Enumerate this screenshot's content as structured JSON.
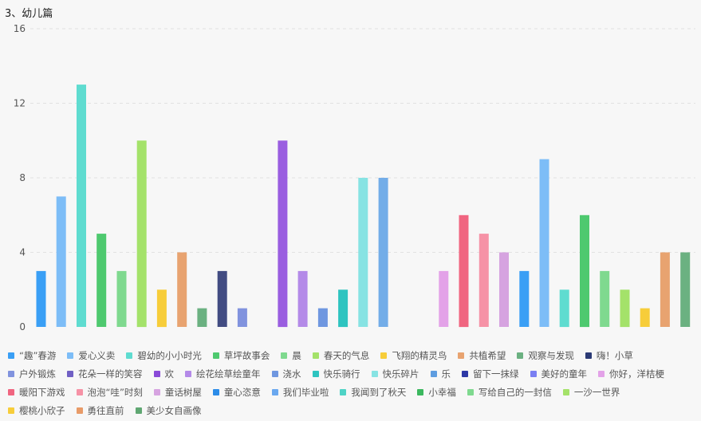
{
  "chart_data": {
    "type": "bar",
    "title": "3、幼儿篇",
    "ylim": [
      0,
      16
    ],
    "yticks": [
      0,
      4,
      8,
      12,
      16
    ],
    "grid": true,
    "legend_position": "bottom",
    "categories": [
      "“趣”春游",
      "爱心义卖",
      "碧幼的小小时光",
      "草坪故事会",
      "晨",
      "春天的气息",
      "飞翔的精灵鸟",
      "共植希望",
      "观察与发现",
      "嗨！小草",
      "户外锻炼",
      "花朵一样的笑容",
      "欢",
      "绘花绘草绘童年",
      "浇水",
      "快乐骑行",
      "快乐碎片",
      "乐",
      "留下一抹绿",
      "美好的童年",
      "你好，洋桔梗",
      "暖阳下游戏",
      "泡泡“哇”时刻",
      "童话树屋",
      "童心恣意",
      "我们毕业啦",
      "我闻到了秋天",
      "小幸福",
      "写给自己的一封信",
      "一沙一世界",
      "樱桃小欣子",
      "勇往直前",
      "美少女自画像"
    ],
    "values": [
      3,
      7,
      13,
      5,
      3,
      10,
      2,
      4,
      1,
      3,
      1,
      0,
      10,
      3,
      1,
      2,
      8,
      8,
      0,
      0,
      3,
      6,
      5,
      4,
      3,
      9,
      2,
      6,
      3,
      2,
      1,
      4,
      4
    ],
    "colors": [
      "#3a9ff5",
      "#7dbdf7",
      "#5fdcd0",
      "#4ec96f",
      "#7fd98f",
      "#a4e26a",
      "#f7cd3a",
      "#e8a370",
      "#6bb181",
      "#2b3a75",
      "#8193de",
      "#7060c4",
      "#8a4ad8",
      "#b48ae8",
      "#6f97e0",
      "#2ec4c0",
      "#87e3e3",
      "#5e9de0",
      "#2d38a6",
      "#7a7ff2",
      "#e3a2e8",
      "#f06580",
      "#f692a6",
      "#d6a3e0",
      "#2c8ce8",
      "#6aa8ef",
      "#4fd3c6",
      "#3cb85f",
      "#7fd98f",
      "#a5e26a",
      "#f7cd3a",
      "#e89b68",
      "#5fa772"
    ],
    "bar_colors": [
      "#3a9ff5",
      "#7dbdf7",
      "#5fdcd0",
      "#4ec96f",
      "#7fd98f",
      "#a4e26a",
      "#f7cd3a",
      "#e8a370",
      "#6bb181",
      "#424c82",
      "#8193de",
      "#7060c4",
      "#9a5ee0",
      "#b48ae8",
      "#6f97e0",
      "#2ec4c0",
      "#87e3e3",
      "#73ade8",
      "#2d38a6",
      "#7a7ff2",
      "#e3a2e8",
      "#f06580",
      "#f692a6",
      "#d6a3e0",
      "#3a9ff5",
      "#7dbdf7",
      "#5fdcd0",
      "#4ec96f",
      "#7fd98f",
      "#a4e26a",
      "#f7cd3a",
      "#e8a370",
      "#6bb181"
    ]
  }
}
